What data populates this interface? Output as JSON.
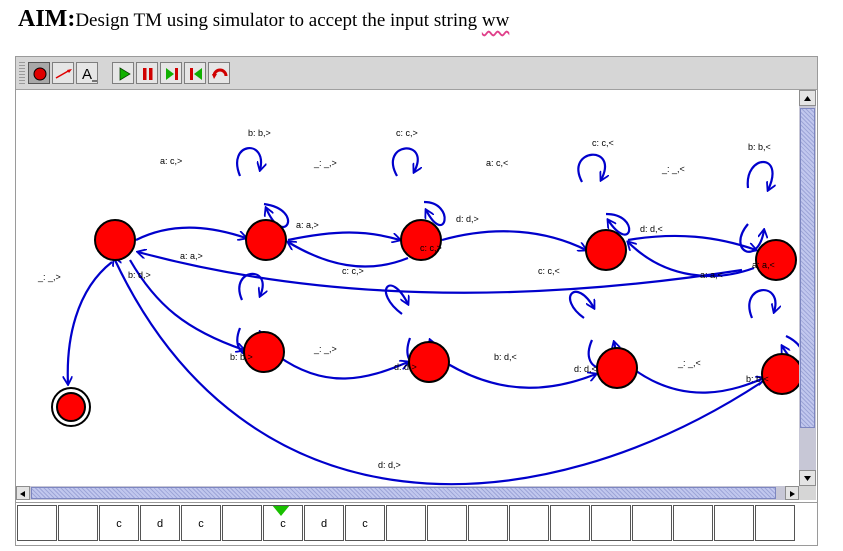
{
  "aim": {
    "label": "AIM:",
    "text": "Design TM using simulator to accept the input string ",
    "word": "ww"
  },
  "toolbar": {
    "tools": [
      {
        "name": "state-tool",
        "icon": "state-circle-icon"
      },
      {
        "name": "transition-tool",
        "icon": "transition-arrow-icon"
      },
      {
        "name": "label-tool",
        "icon": "text-label-icon",
        "glyph": "A"
      },
      {
        "name": "run-button",
        "icon": "play-icon"
      },
      {
        "name": "pause-button",
        "icon": "pause-icon"
      },
      {
        "name": "step-forward-button",
        "icon": "step-forward-icon"
      },
      {
        "name": "step-back-button",
        "icon": "step-back-icon"
      },
      {
        "name": "reset-button",
        "icon": "reset-icon"
      }
    ]
  },
  "colors": {
    "state": "#ff0000",
    "edge": "#0000cc",
    "head": "#19c000"
  },
  "diagram": {
    "labels": [
      {
        "text": "b: b,>"
      },
      {
        "text": "c: c,>"
      },
      {
        "text": "c: c,<"
      },
      {
        "text": "b: b,<"
      },
      {
        "text": "a: c,>"
      },
      {
        "text": "_: _,>"
      },
      {
        "text": "a: c,<"
      },
      {
        "text": "_: _,<"
      },
      {
        "text": "d: d,>"
      },
      {
        "text": "d: d,<"
      },
      {
        "text": "a: a,>"
      },
      {
        "text": "c: c,>"
      },
      {
        "text": "a: a,>"
      },
      {
        "text": "b: d,>"
      },
      {
        "text": "c: c,>"
      },
      {
        "text": "c: c,<"
      },
      {
        "text": "a: a,<"
      },
      {
        "text": "a: a,<"
      },
      {
        "text": "_: _,>"
      },
      {
        "text": "b: b,>"
      },
      {
        "text": "_: _,>"
      },
      {
        "text": "d: d,>"
      },
      {
        "text": "b: d,<"
      },
      {
        "text": "d: d,<"
      },
      {
        "text": "_: _,<"
      },
      {
        "text": "b: b,<"
      },
      {
        "text": "d: d,>"
      }
    ]
  },
  "tape": {
    "cells": [
      "",
      "",
      "c",
      "d",
      "c",
      "",
      "c",
      "d",
      "c",
      "",
      "",
      "",
      "",
      "",
      "",
      "",
      "",
      "",
      ""
    ]
  }
}
